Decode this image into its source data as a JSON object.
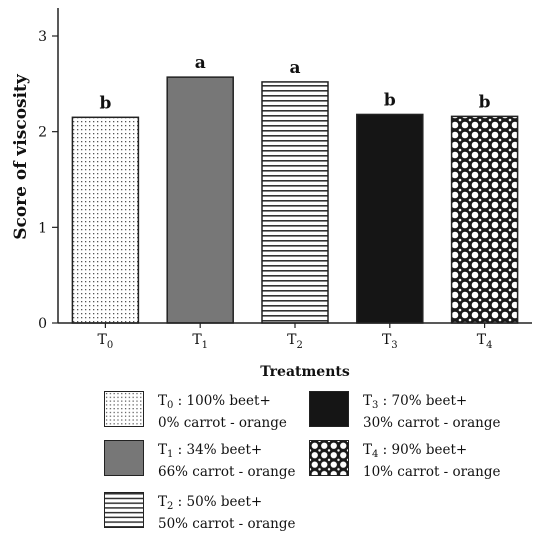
{
  "chart_data": {
    "type": "bar",
    "categories": [
      "T0",
      "T1",
      "T2",
      "T3",
      "T4"
    ],
    "category_labels": [
      {
        "main": "T",
        "sub": "0"
      },
      {
        "main": "T",
        "sub": "1"
      },
      {
        "main": "T",
        "sub": "2"
      },
      {
        "main": "T",
        "sub": "3"
      },
      {
        "main": "T",
        "sub": "4"
      }
    ],
    "values": [
      2.15,
      2.57,
      2.52,
      2.18,
      2.16
    ],
    "significance_letters": [
      "b",
      "a",
      "a",
      "b",
      "b"
    ],
    "patterns": [
      "dots",
      "solid-gray",
      "horizontal-lines",
      "solid-black",
      "crosshatch"
    ],
    "colors": {
      "gray": "#777777",
      "black": "#151515",
      "line": "#222222"
    },
    "xlabel": "Treatments",
    "ylabel": "Score of viscosity",
    "ylim": [
      0,
      3
    ],
    "yticks": [
      "0",
      "1",
      "2",
      "3"
    ],
    "grid": false,
    "legend_placement": "bottom"
  },
  "legend": [
    {
      "pattern": "dots",
      "sym": "T",
      "sub": "0",
      "line1_rest": ": 100% beet+",
      "line2": "0% carrot - orange"
    },
    {
      "pattern": "solid-gray",
      "sym": "T",
      "sub": "1",
      "line1_rest": ": 34% beet+",
      "line2": "66% carrot - orange"
    },
    {
      "pattern": "horizontal-lines",
      "sym": "T",
      "sub": "2",
      "line1_rest": ": 50% beet+",
      "line2": "50% carrot - orange"
    },
    {
      "pattern": "solid-black",
      "sym": "T",
      "sub": "3",
      "line1_rest": ": 70% beet+",
      "line2": "30% carrot - orange"
    },
    {
      "pattern": "crosshatch",
      "sym": "T",
      "sub": "4",
      "line1_rest": ": 90% beet+",
      "line2": "10% carrot - orange"
    }
  ]
}
